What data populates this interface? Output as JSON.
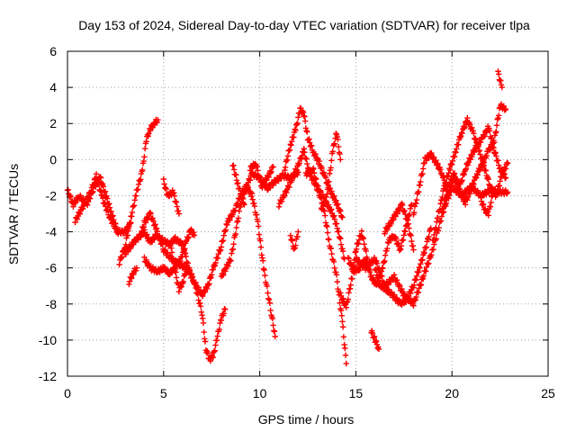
{
  "chart_data": {
    "type": "scatter",
    "title": "Day 153 of 2024, Sidereal Day-to-day VTEC variation (SDTVAR) for receiver tlpa",
    "xlabel": "GPS time / hours",
    "ylabel": "SDTVAR / TECUs",
    "xlim": [
      0,
      25
    ],
    "ylim": [
      -12,
      6
    ],
    "xticks": [
      "0",
      "5",
      "10",
      "15",
      "20",
      "25"
    ],
    "yticks": [
      "-12",
      "-10",
      "-8",
      "-6",
      "-4",
      "-2",
      "0",
      "2",
      "4",
      "6"
    ],
    "grid": true,
    "marker": "+",
    "color": "#ff0000",
    "series": [
      {
        "x": [
          0.0,
          0.3,
          0.6,
          1.0,
          1.4,
          1.7,
          2.0,
          2.3,
          2.6,
          3.0,
          3.3
        ],
        "y": [
          -1.7,
          -2.5,
          -2.0,
          -2.5,
          -1.5,
          -1.0,
          -2.0,
          -3.0,
          -4.0,
          -4.0,
          -3.5
        ]
      },
      {
        "x": [
          0.4,
          0.8,
          1.2,
          1.5,
          1.8,
          2.2,
          2.6
        ],
        "y": [
          -3.4,
          -2.6,
          -1.8,
          -0.9,
          -2.1,
          -3.2,
          -4.0
        ]
      },
      {
        "x": [
          2.7,
          3.0,
          3.3,
          3.6,
          3.9,
          4.1,
          4.3,
          4.5,
          4.7
        ],
        "y": [
          -5.7,
          -4.8,
          -3.2,
          -1.8,
          -0.6,
          1.1,
          1.7,
          2.0,
          2.2
        ]
      },
      {
        "x": [
          3.2,
          3.4,
          3.6
        ],
        "y": [
          -6.8,
          -6.3,
          -6.0
        ]
      },
      {
        "x": [
          3.0,
          3.5,
          4.0,
          4.3,
          4.6,
          5.0,
          5.3,
          5.6,
          6.0,
          6.3,
          6.6,
          7.0,
          7.3,
          7.6,
          8.0,
          8.3,
          8.7,
          9.0,
          9.3,
          9.6,
          10.0,
          10.4,
          10.8,
          11.2,
          11.6,
          12.0
        ],
        "y": [
          -5.2,
          -4.5,
          -4.0,
          -4.6,
          -4.2,
          -4.5,
          -4.7,
          -4.4,
          -4.7,
          -6.0,
          -6.8,
          -7.5,
          -7.0,
          -6.0,
          -4.8,
          -3.5,
          -2.8,
          -2.0,
          -1.5,
          -0.8,
          -1.0,
          -1.6,
          -1.2,
          -0.9,
          -1.0,
          -0.7
        ]
      },
      {
        "x": [
          3.8,
          4.0,
          4.3,
          4.6,
          5.0,
          5.4,
          5.8,
          6.2,
          6.6,
          7.0,
          7.2,
          7.4,
          7.6,
          7.8,
          8.0,
          8.2
        ],
        "y": [
          -4.2,
          -3.5,
          -3.0,
          -3.8,
          -5.0,
          -5.5,
          -5.8,
          -6.0,
          -6.8,
          -8.5,
          -10.5,
          -11.1,
          -10.8,
          -9.8,
          -8.8,
          -8.3
        ]
      },
      {
        "x": [
          4.0,
          4.3,
          4.7,
          5.0,
          5.3,
          5.6,
          5.9,
          6.2,
          6.4,
          6.6
        ],
        "y": [
          -5.5,
          -6.0,
          -6.2,
          -6.0,
          -6.3,
          -6.0,
          -5.5,
          -4.5,
          -3.9,
          -4.2
        ]
      },
      {
        "x": [
          5.0,
          5.2,
          5.5,
          5.8
        ],
        "y": [
          -1.2,
          -2.0,
          -1.8,
          -3.0
        ]
      },
      {
        "x": [
          5.4,
          5.6,
          5.8,
          6.0,
          6.2
        ],
        "y": [
          -5.0,
          -6.2,
          -7.2,
          -6.8,
          -6.0
        ]
      },
      {
        "x": [
          8.0,
          8.5,
          9.0,
          9.3,
          9.6,
          9.9,
          10.2,
          10.6,
          10.8
        ],
        "y": [
          -6.5,
          -5.5,
          -2.5,
          -1.5,
          -2.0,
          -3.5,
          -6.0,
          -8.5,
          -9.8
        ]
      },
      {
        "x": [
          8.6,
          8.9,
          9.2
        ],
        "y": [
          -0.3,
          -1.5,
          -2.5
        ]
      },
      {
        "x": [
          9.5,
          9.8,
          10.1,
          10.4,
          10.7
        ],
        "y": [
          -0.5,
          -0.2,
          -1.5,
          -1.0,
          -0.4
        ]
      },
      {
        "x": [
          11.0,
          11.5,
          12.0,
          12.3,
          12.6,
          13.0,
          13.3,
          13.6,
          14.0,
          14.3,
          14.5
        ],
        "y": [
          -2.5,
          -1.5,
          -0.3,
          0.5,
          -0.8,
          -1.6,
          -2.5,
          -4.5,
          -6.5,
          -9.0,
          -11.3
        ]
      },
      {
        "x": [
          11.3,
          11.6,
          11.9,
          12.1,
          12.3,
          12.5,
          12.8,
          13.1,
          13.4,
          13.7,
          14.0,
          14.3
        ],
        "y": [
          -0.5,
          0.8,
          1.8,
          2.8,
          2.5,
          1.2,
          0.4,
          -0.2,
          -1.0,
          -1.8,
          -2.4,
          -3.2
        ]
      },
      {
        "x": [
          11.6,
          11.8,
          12.0
        ],
        "y": [
          -4.2,
          -5.0,
          -4.0
        ]
      },
      {
        "x": [
          12.4,
          12.8,
          13.0,
          13.4,
          13.8,
          14.1,
          14.4
        ],
        "y": [
          -0.8,
          -0.6,
          -1.5,
          -2.3,
          -3.0,
          -4.0,
          -5.5
        ]
      },
      {
        "x": [
          13.2,
          13.5,
          13.8,
          14.0,
          14.2
        ],
        "y": [
          -2.8,
          -2.0,
          0.5,
          1.5,
          0.0
        ]
      },
      {
        "x": [
          14.2,
          14.5,
          14.8,
          15.0,
          15.3,
          15.6
        ],
        "y": [
          -7.5,
          -8.2,
          -6.5,
          -5.0,
          -4.0,
          -5.5
        ]
      },
      {
        "x": [
          14.6,
          14.9,
          15.2,
          15.5,
          15.8,
          16.1,
          16.4,
          16.7,
          17.0,
          17.3,
          17.6,
          17.9
        ],
        "y": [
          -5.5,
          -6.2,
          -6.0,
          -5.5,
          -6.5,
          -7.0,
          -6.0,
          -4.5,
          -4.2,
          -5.0,
          -3.8,
          -2.5
        ]
      },
      {
        "x": [
          15.0,
          15.5,
          16.0,
          16.5,
          17.0,
          17.5,
          18.0,
          18.5,
          19.0,
          19.5,
          20.0,
          20.5,
          21.0,
          21.5,
          22.0,
          22.5,
          22.9
        ],
        "y": [
          -5.5,
          -6.0,
          -5.5,
          -7.0,
          -6.5,
          -7.5,
          -8.0,
          -6.5,
          -5.0,
          -3.0,
          -1.5,
          -2.0,
          -1.5,
          -2.0,
          -1.7,
          -1.8,
          -1.8
        ]
      },
      {
        "x": [
          15.8,
          16.0,
          16.2
        ],
        "y": [
          -9.5,
          -10.0,
          -10.5
        ]
      },
      {
        "x": [
          16.0,
          16.3,
          16.6,
          17.0,
          17.3,
          17.6,
          18.0,
          18.3,
          18.6,
          18.9
        ],
        "y": [
          -6.0,
          -7.0,
          -7.2,
          -7.6,
          -8.0,
          -7.8,
          -7.0,
          -6.0,
          -5.0,
          -3.8
        ]
      },
      {
        "x": [
          16.5,
          16.8,
          17.1,
          17.4,
          17.7,
          18.0
        ],
        "y": [
          -4.0,
          -3.5,
          -3.0,
          -2.5,
          -3.5,
          -5.0
        ]
      },
      {
        "x": [
          18.0,
          18.3,
          18.6,
          18.9,
          19.2,
          19.5,
          19.8,
          20.1,
          20.4,
          20.7,
          21.0,
          21.3,
          21.6,
          21.9,
          22.2,
          22.5,
          22.8
        ],
        "y": [
          -3.0,
          -1.5,
          0.0,
          0.3,
          -0.2,
          -0.8,
          -2.0,
          -1.0,
          -1.8,
          -2.4,
          -1.6,
          -0.8,
          -0.2,
          0.5,
          1.0,
          3.0,
          2.8
        ]
      },
      {
        "x": [
          19.0,
          19.3,
          19.6,
          19.9,
          20.2,
          20.5,
          20.8,
          21.1,
          21.4,
          21.7,
          22.0,
          22.3,
          22.6,
          22.9
        ],
        "y": [
          -4.5,
          -3.0,
          -1.5,
          -0.5,
          0.5,
          1.5,
          2.2,
          1.5,
          0.5,
          -0.5,
          -1.5,
          -2.0,
          -0.8,
          -0.2
        ]
      },
      {
        "x": [
          19.5,
          19.8,
          20.1,
          20.4,
          20.7,
          21.0,
          21.3,
          21.6,
          21.9,
          22.2,
          22.5,
          22.8
        ],
        "y": [
          -2.8,
          -1.5,
          -0.8,
          -1.5,
          -0.5,
          0.2,
          0.8,
          1.2,
          1.8,
          0.5,
          -0.5,
          -1.0
        ]
      },
      {
        "x": [
          21.5,
          21.7,
          21.9,
          22.1
        ],
        "y": [
          -2.2,
          -2.8,
          -3.0,
          -2.0
        ]
      },
      {
        "x": [
          22.4,
          22.5,
          22.6
        ],
        "y": [
          4.8,
          4.4,
          4.0
        ]
      }
    ]
  }
}
